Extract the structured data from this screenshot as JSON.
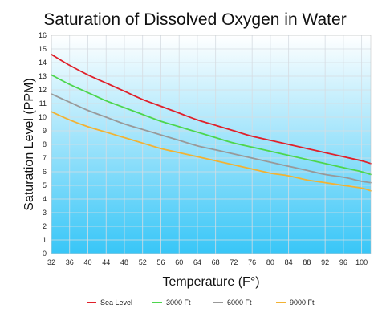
{
  "chart_data": {
    "type": "line",
    "title": "Saturation of Dissolved Oxygen in Water",
    "xlabel": "Temperature (F°)",
    "ylabel": "Saturation Level (PPM)",
    "xlim": [
      32,
      102
    ],
    "ylim": [
      0,
      16
    ],
    "xticks": [
      32,
      36,
      40,
      44,
      48,
      52,
      56,
      60,
      64,
      68,
      72,
      76,
      80,
      84,
      88,
      92,
      96,
      100
    ],
    "yticks": [
      0,
      1,
      2,
      3,
      4,
      5,
      6,
      7,
      8,
      9,
      10,
      11,
      12,
      13,
      14,
      15,
      16
    ],
    "grid": true,
    "legend_position": "bottom",
    "x": [
      32,
      36,
      40,
      44,
      48,
      52,
      56,
      60,
      64,
      68,
      72,
      76,
      80,
      84,
      88,
      92,
      96,
      100,
      102
    ],
    "series": [
      {
        "name": "Sea Level",
        "color": "#e0202a",
        "values": [
          14.6,
          13.8,
          13.1,
          12.5,
          11.9,
          11.3,
          10.8,
          10.3,
          9.8,
          9.4,
          9.0,
          8.6,
          8.3,
          8.0,
          7.7,
          7.4,
          7.1,
          6.8,
          6.6
        ]
      },
      {
        "name": "3000 Ft",
        "color": "#4dd64d",
        "values": [
          13.1,
          12.4,
          11.8,
          11.2,
          10.7,
          10.2,
          9.7,
          9.3,
          8.9,
          8.5,
          8.1,
          7.8,
          7.5,
          7.2,
          6.9,
          6.6,
          6.3,
          6.0,
          5.8
        ]
      },
      {
        "name": "6000 Ft",
        "color": "#999999",
        "values": [
          11.7,
          11.1,
          10.5,
          10.0,
          9.5,
          9.1,
          8.7,
          8.3,
          7.9,
          7.6,
          7.3,
          7.0,
          6.7,
          6.4,
          6.1,
          5.8,
          5.6,
          5.3,
          5.2
        ]
      },
      {
        "name": "9000 Ft",
        "color": "#f2b233",
        "values": [
          10.4,
          9.8,
          9.3,
          8.9,
          8.5,
          8.1,
          7.7,
          7.4,
          7.1,
          6.8,
          6.5,
          6.2,
          5.9,
          5.7,
          5.4,
          5.2,
          5.0,
          4.8,
          4.6
        ]
      }
    ]
  }
}
